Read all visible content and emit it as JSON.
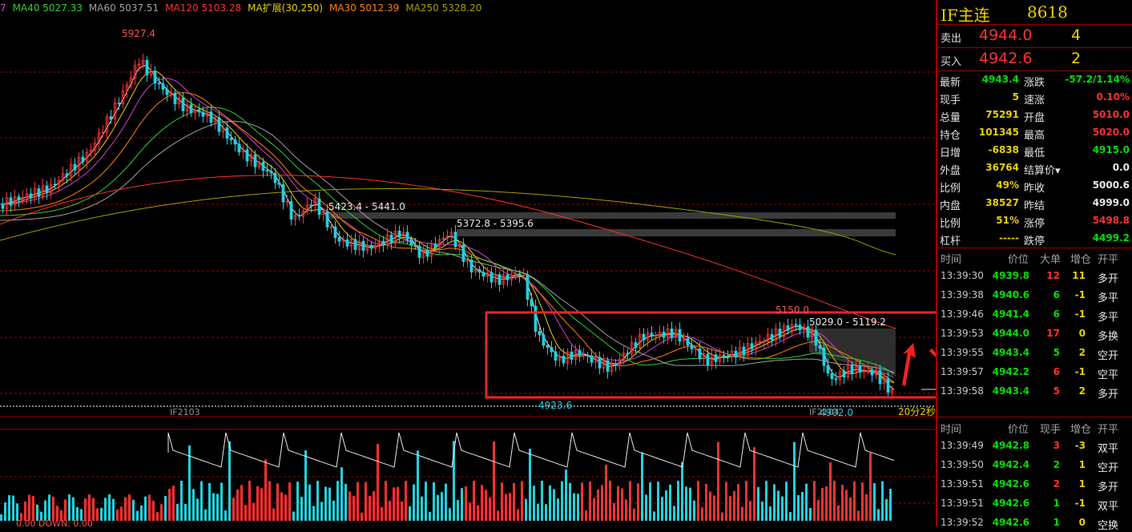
{
  "top_ma_legend": [
    {
      "text": "7",
      "color": "#d040d0"
    },
    {
      "text": "MA40 5027.33",
      "color": "#30d030"
    },
    {
      "text": "MA60 5037.51",
      "color": "#a0a0a0"
    },
    {
      "text": "MA120 5103.28",
      "color": "#ff3030"
    },
    {
      "text": "MA扩展(30,250)",
      "color": "#e8d000"
    },
    {
      "text": "MA30 5012.39",
      "color": "#ff8000"
    },
    {
      "text": "MA250 5328.20",
      "color": "#a0a000"
    }
  ],
  "chart_labels": {
    "high": "5927.4",
    "gap1": "5423.4 - 5441.0",
    "gap2": "5372.8 - 5395.6",
    "gap3": "5029.0 - 5119.2",
    "peak2": "5150.0",
    "low1": "4923.6",
    "low2": "4902.0",
    "contract1": "IF2103",
    "contract2": "IF2104",
    "countdown": "20分2秒",
    "bottom_indicator": "0.00  DOWN: 0.00"
  },
  "header": {
    "title": "IF主连",
    "code": "8618"
  },
  "quote": {
    "sell_label": "卖出",
    "sell_price": "4944.0",
    "sell_vol": "4",
    "buy_label": "买入",
    "buy_price": "4942.6",
    "buy_vol": "2"
  },
  "stats": [
    {
      "l1": "最新",
      "v1": "4943.4",
      "c1": "green",
      "l2": "涨跌",
      "v2": "-57.2/1.14%",
      "c2": "green"
    },
    {
      "l1": "现手",
      "v1": "5",
      "c1": "yellow",
      "l2": "速涨",
      "v2": "0.10%",
      "c2": "red"
    },
    {
      "l1": "总量",
      "v1": "75291",
      "c1": "yellow",
      "l2": "开盘",
      "v2": "5010.0",
      "c2": "red"
    },
    {
      "l1": "持仓",
      "v1": "101345",
      "c1": "yellow",
      "l2": "最高",
      "v2": "5020.0",
      "c2": "red"
    },
    {
      "l1": "日增",
      "v1": "-6838",
      "c1": "yellow",
      "l2": "最低",
      "v2": "4915.0",
      "c2": "green"
    },
    {
      "l1": "外盘",
      "v1": "36764",
      "c1": "yellow",
      "l2": "结算价▾",
      "v2": "0.0",
      "c2": "white"
    },
    {
      "l1": "比例",
      "v1": "49%",
      "c1": "yellow",
      "l2": "昨收",
      "v2": "5000.6",
      "c2": "white"
    },
    {
      "l1": "内盘",
      "v1": "38527",
      "c1": "yellow",
      "l2": "昨结",
      "v2": "4999.0",
      "c2": "white"
    },
    {
      "l1": "比例",
      "v1": "51%",
      "c1": "yellow",
      "l2": "涨停",
      "v2": "5498.8",
      "c2": "red"
    },
    {
      "l1": "杠杆",
      "v1": "-----",
      "c1": "yellow",
      "l2": "跌停",
      "v2": "4499.2",
      "c2": "green"
    }
  ],
  "trades1": {
    "headers": [
      "时间",
      "价位",
      "大单",
      "增仓",
      "开平"
    ],
    "rows": [
      {
        "t": "13:39:30",
        "p": "4939.8",
        "pc": "green",
        "v": "12",
        "vc": "red",
        "d": "11",
        "dc": "yellow",
        "k": "多开",
        "kc": "white"
      },
      {
        "t": "13:39:38",
        "p": "4940.6",
        "pc": "green",
        "v": "6",
        "vc": "green",
        "d": "-1",
        "dc": "yellow",
        "k": "多平",
        "kc": "white"
      },
      {
        "t": "13:39:46",
        "p": "4941.4",
        "pc": "green",
        "v": "6",
        "vc": "green",
        "d": "-1",
        "dc": "yellow",
        "k": "多平",
        "kc": "white"
      },
      {
        "t": "13:39:53",
        "p": "4944.0",
        "pc": "green",
        "v": "17",
        "vc": "red",
        "d": "0",
        "dc": "yellow",
        "k": "多换",
        "kc": "white"
      },
      {
        "t": "13:39:55",
        "p": "4943.4",
        "pc": "green",
        "v": "5",
        "vc": "green",
        "d": "2",
        "dc": "yellow",
        "k": "空开",
        "kc": "white"
      },
      {
        "t": "13:39:57",
        "p": "4942.2",
        "pc": "green",
        "v": "6",
        "vc": "red",
        "d": "-1",
        "dc": "yellow",
        "k": "空平",
        "kc": "white"
      },
      {
        "t": "13:39:58",
        "p": "4943.4",
        "pc": "green",
        "v": "5",
        "vc": "red",
        "d": "2",
        "dc": "yellow",
        "k": "多开",
        "kc": "white"
      }
    ]
  },
  "trades2": {
    "headers": [
      "时间",
      "价位",
      "现手",
      "增仓",
      "开平"
    ],
    "rows": [
      {
        "t": "13:39:49",
        "p": "4942.8",
        "pc": "green",
        "v": "3",
        "vc": "red",
        "d": "-3",
        "dc": "yellow",
        "k": "双平",
        "kc": "white"
      },
      {
        "t": "13:39:50",
        "p": "4942.4",
        "pc": "green",
        "v": "2",
        "vc": "green",
        "d": "1",
        "dc": "yellow",
        "k": "空开",
        "kc": "white"
      },
      {
        "t": "13:39:51",
        "p": "4942.6",
        "pc": "green",
        "v": "2",
        "vc": "red",
        "d": "1",
        "dc": "yellow",
        "k": "多开",
        "kc": "white"
      },
      {
        "t": "13:39:51",
        "p": "4942.6",
        "pc": "green",
        "v": "1",
        "vc": "green",
        "d": "-1",
        "dc": "yellow",
        "k": "双平",
        "kc": "white"
      },
      {
        "t": "13:39:52",
        "p": "4942.6",
        "pc": "green",
        "v": "1",
        "vc": "green",
        "d": "0",
        "dc": "yellow",
        "k": "空换",
        "kc": "white"
      }
    ]
  },
  "colors": {
    "up": "#ff3030",
    "down": "#20d0e0",
    "grid": "#a00000",
    "annotation": "#ff2020"
  }
}
